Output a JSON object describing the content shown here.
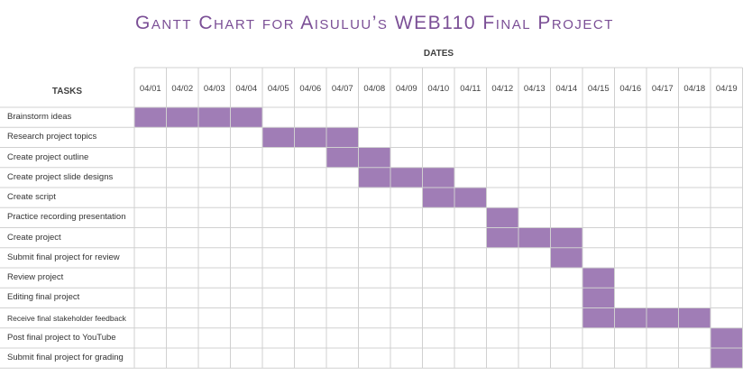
{
  "title": "Gantt Chart for Aisuluu’s WEB110 Final Project",
  "header": {
    "dates_label": "DATES",
    "tasks_label": "TASKS"
  },
  "colors": {
    "bar": "#a07db6",
    "grid": "#d0d0d0",
    "title": "#7b4f96"
  },
  "chart_data": {
    "type": "gantt",
    "title": "Gantt Chart for Aisuluu’s WEB110 Final Project",
    "xlabel": "DATES",
    "ylabel": "TASKS",
    "dates": [
      "04/01",
      "04/02",
      "04/03",
      "04/04",
      "04/05",
      "04/06",
      "04/07",
      "04/08",
      "04/09",
      "04/10",
      "04/11",
      "04/12",
      "04/13",
      "04/14",
      "04/15",
      "04/16",
      "04/17",
      "04/18",
      "04/19"
    ],
    "tasks": [
      {
        "name": "Brainstorm ideas",
        "start": "04/01",
        "end": "04/04"
      },
      {
        "name": "Research project topics",
        "start": "04/05",
        "end": "04/07"
      },
      {
        "name": "Create project outline",
        "start": "04/07",
        "end": "04/08"
      },
      {
        "name": "Create project slide designs",
        "start": "04/08",
        "end": "04/10"
      },
      {
        "name": "Create script",
        "start": "04/10",
        "end": "04/11"
      },
      {
        "name": "Practice recording presentation",
        "start": "04/12",
        "end": "04/12"
      },
      {
        "name": "Create project",
        "start": "04/12",
        "end": "04/14"
      },
      {
        "name": "Submit final project for review",
        "start": "04/14",
        "end": "04/14"
      },
      {
        "name": "Review project",
        "start": "04/15",
        "end": "04/15"
      },
      {
        "name": "Editing final project",
        "start": "04/15",
        "end": "04/15"
      },
      {
        "name": "Receive final stakeholder feedback",
        "start": "04/15",
        "end": "04/18"
      },
      {
        "name": "Post final project to YouTube",
        "start": "04/19",
        "end": "04/19"
      },
      {
        "name": "Submit final project for grading",
        "start": "04/19",
        "end": "04/19"
      }
    ]
  }
}
